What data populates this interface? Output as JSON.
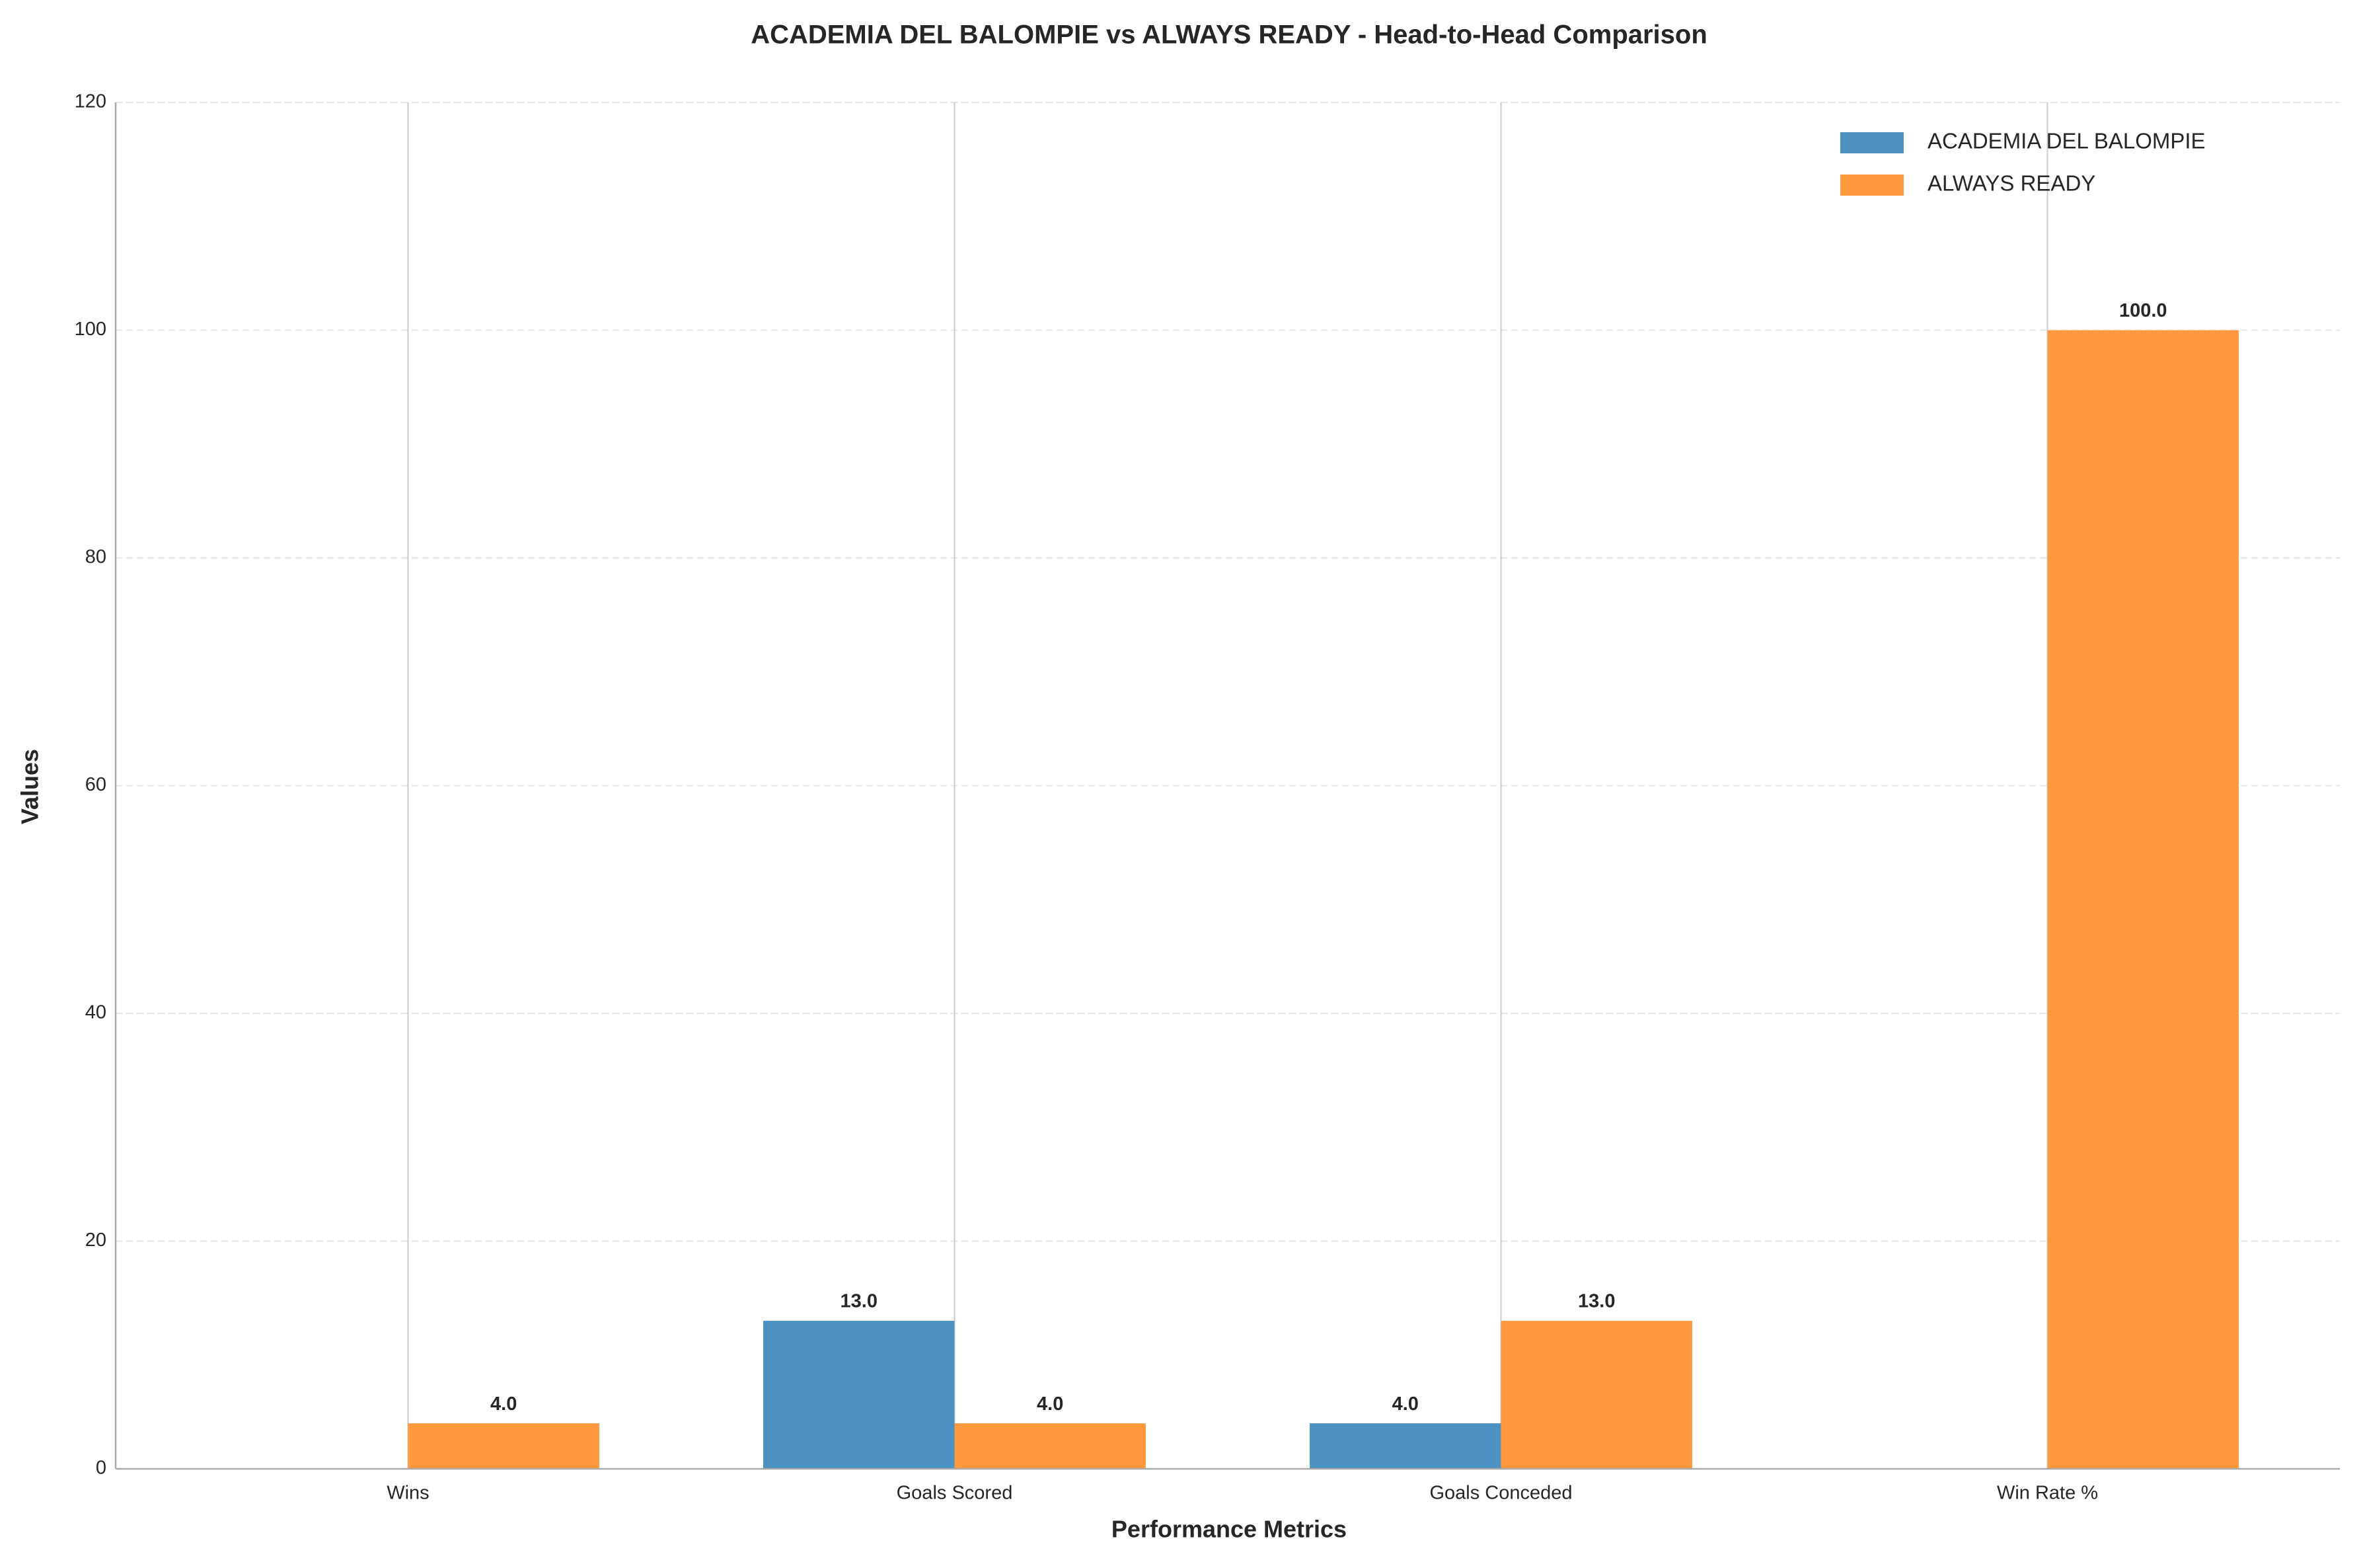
{
  "chart_data": {
    "type": "bar",
    "title": "ACADEMIA DEL BALOMPIE vs ALWAYS READY - Head-to-Head Comparison",
    "x_label": "Performance Metrics",
    "y_label": "Values",
    "categories": [
      "Wins",
      "Goals Scored",
      "Goals Conceded",
      "Win Rate %"
    ],
    "series": [
      {
        "name": "ACADEMIA DEL BALOMPIE",
        "color": "#4c92c3",
        "values": [
          0,
          13,
          4,
          0
        ],
        "value_labels": [
          null,
          "13.0",
          "4.0",
          null
        ]
      },
      {
        "name": "ALWAYS READY",
        "color": "#ff983e",
        "values": [
          4,
          4,
          13,
          100
        ],
        "value_labels": [
          "4.0",
          "4.0",
          "13.0",
          "100.0"
        ]
      }
    ],
    "ylim": [
      0,
      120
    ],
    "yticks": [
      0,
      20,
      40,
      60,
      80,
      100,
      120
    ],
    "grid": true,
    "legend": "upper right"
  }
}
